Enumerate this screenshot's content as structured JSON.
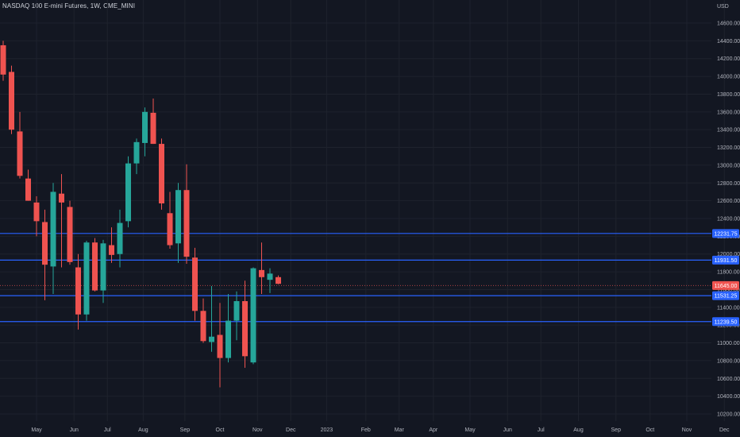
{
  "header": {
    "symbol_title": "NASDAQ 100 E-mini Futures, 1W, CME_MINI"
  },
  "colors": {
    "background": "#131722",
    "grid": "#1e222d",
    "up": "#26a69a",
    "down": "#ef5350",
    "level_line": "#2962ff",
    "level_label_bg": "#2962ff",
    "axis_text": "#b2b5be"
  },
  "chart_data": {
    "type": "candlestick",
    "timeframe": "1W",
    "currency": "USD",
    "ylim": [
      10150,
      14800
    ],
    "y_ticks": [
      10200,
      10400,
      10600,
      10800,
      11000,
      11200,
      11400,
      11600,
      11800,
      12000,
      12200,
      12400,
      12600,
      12800,
      13000,
      13200,
      13400,
      13600,
      13800,
      14000,
      14200,
      14400,
      14600
    ],
    "y_tick_labels": [
      "10200.00",
      "10400.00",
      "10600.00",
      "10800.00",
      "11000.00",
      "11200.00",
      "11400.00",
      "11600.00",
      "11800.00",
      "12000.00",
      "12200.00",
      "12400.00",
      "12600.00",
      "12800.00",
      "13000.00",
      "13200.00",
      "13400.00",
      "13600.00",
      "13800.00",
      "14000.00",
      "14200.00",
      "14400.00",
      "14600.00"
    ],
    "x_ticks": [
      "May",
      "Jun",
      "Jul",
      "Aug",
      "Sep",
      "Oct",
      "Nov",
      "Dec",
      "2023",
      "Feb",
      "Mar",
      "Apr",
      "May",
      "Jun",
      "Jul",
      "Aug",
      "Sep",
      "Oct",
      "Nov",
      "Dec"
    ],
    "x_tick_index": [
      4.0,
      8.5,
      12.5,
      16.8,
      21.8,
      26.0,
      30.5,
      34.5,
      38.8,
      43.5,
      47.5,
      51.6,
      56.0,
      60.5,
      64.5,
      69.0,
      73.5,
      77.6,
      82.0,
      86.5
    ],
    "candles": [
      {
        "o": 14350,
        "h": 14400,
        "l": 13950,
        "c": 14020
      },
      {
        "o": 14050,
        "h": 14120,
        "l": 13350,
        "c": 13400
      },
      {
        "o": 13380,
        "h": 13600,
        "l": 12850,
        "c": 12880
      },
      {
        "o": 12850,
        "h": 12950,
        "l": 12600,
        "c": 12600
      },
      {
        "o": 12580,
        "h": 12650,
        "l": 12200,
        "c": 12370
      },
      {
        "o": 12360,
        "h": 12500,
        "l": 11480,
        "c": 11880
      },
      {
        "o": 11860,
        "h": 12800,
        "l": 11550,
        "c": 12700
      },
      {
        "o": 12680,
        "h": 12900,
        "l": 11850,
        "c": 12580
      },
      {
        "o": 12530,
        "h": 12600,
        "l": 11880,
        "c": 11910
      },
      {
        "o": 11850,
        "h": 12000,
        "l": 11150,
        "c": 11320
      },
      {
        "o": 11320,
        "h": 12150,
        "l": 11250,
        "c": 12130
      },
      {
        "o": 12130,
        "h": 12180,
        "l": 11580,
        "c": 11590
      },
      {
        "o": 11590,
        "h": 12160,
        "l": 11450,
        "c": 12120
      },
      {
        "o": 12100,
        "h": 12300,
        "l": 11900,
        "c": 11990
      },
      {
        "o": 12000,
        "h": 12500,
        "l": 11850,
        "c": 12350
      },
      {
        "o": 12370,
        "h": 13100,
        "l": 12300,
        "c": 13020
      },
      {
        "o": 13020,
        "h": 13300,
        "l": 12900,
        "c": 13260
      },
      {
        "o": 13250,
        "h": 13650,
        "l": 13100,
        "c": 13600
      },
      {
        "o": 13590,
        "h": 13750,
        "l": 13240,
        "c": 13240
      },
      {
        "o": 13240,
        "h": 13300,
        "l": 12500,
        "c": 12570
      },
      {
        "o": 12460,
        "h": 12700,
        "l": 12060,
        "c": 12100
      },
      {
        "o": 12120,
        "h": 12800,
        "l": 11900,
        "c": 12720
      },
      {
        "o": 12720,
        "h": 13010,
        "l": 11890,
        "c": 11970
      },
      {
        "o": 11960,
        "h": 12070,
        "l": 11250,
        "c": 11360
      },
      {
        "o": 11360,
        "h": 11500,
        "l": 11000,
        "c": 11020
      },
      {
        "o": 11010,
        "h": 11640,
        "l": 10900,
        "c": 11070
      },
      {
        "o": 11090,
        "h": 11450,
        "l": 10500,
        "c": 10830
      },
      {
        "o": 10830,
        "h": 11550,
        "l": 10780,
        "c": 11250
      },
      {
        "o": 11250,
        "h": 11580,
        "l": 11030,
        "c": 11470
      },
      {
        "o": 11470,
        "h": 11700,
        "l": 10720,
        "c": 10850
      },
      {
        "o": 10780,
        "h": 11850,
        "l": 10760,
        "c": 11840
      },
      {
        "o": 11820,
        "h": 12130,
        "l": 11550,
        "c": 11740
      },
      {
        "o": 11710,
        "h": 11840,
        "l": 11560,
        "c": 11780
      },
      {
        "o": 11740,
        "h": 11760,
        "l": 11660,
        "c": 11665
      }
    ],
    "levels": [
      {
        "value": 12231.75,
        "label": "12231.75"
      },
      {
        "value": 11931.5,
        "label": "11931.50"
      },
      {
        "value": 11531.25,
        "label": "11531.25"
      },
      {
        "value": 11239.5,
        "label": "11239.50"
      }
    ],
    "current_price": {
      "value": 11645.0,
      "label": "11645.00"
    }
  }
}
